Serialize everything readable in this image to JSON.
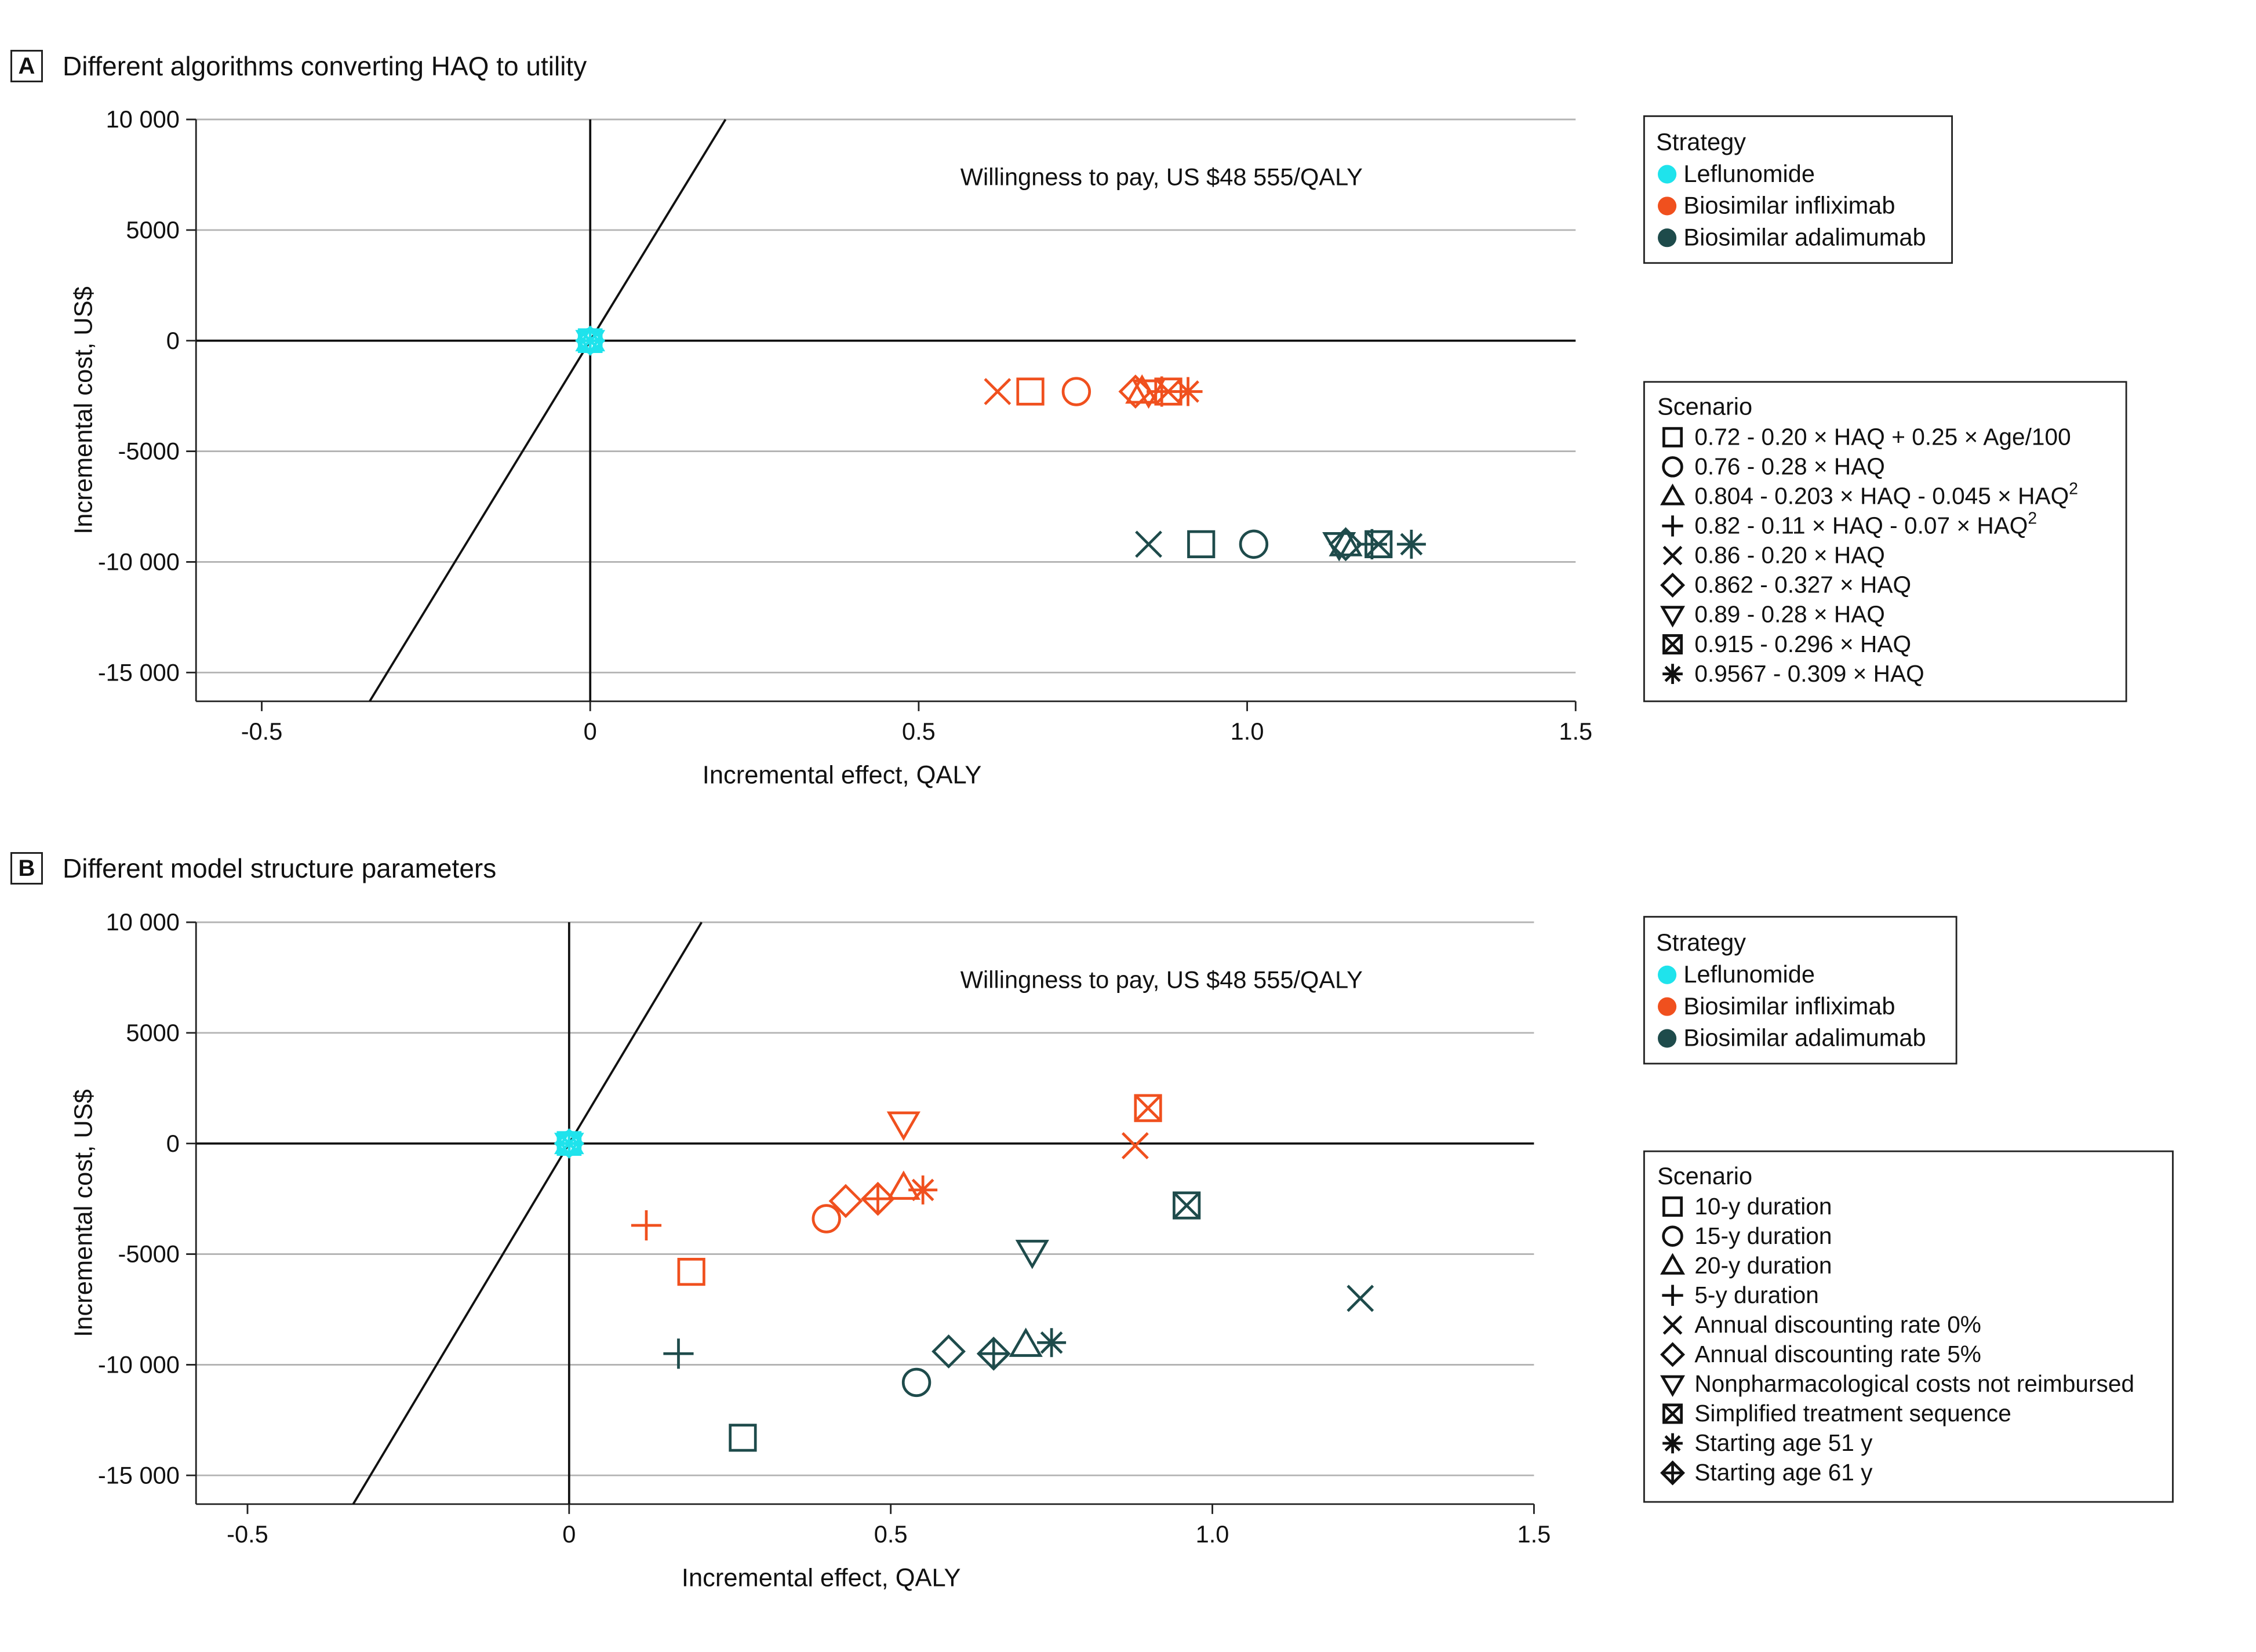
{
  "panel_a": {
    "letter": "A",
    "title": "Different algorithms converting HAQ to utility",
    "wtp_label": "Willingness to pay, US $48 555/QALY",
    "strategy_legend": {
      "title": "Strategy",
      "items": [
        {
          "label": "Leflunomide",
          "color": "#1fe3ec"
        },
        {
          "label": "Biosimilar infliximab",
          "color": "#f0501e"
        },
        {
          "label": "Biosimilar adalimumab",
          "color": "#1e4b4b"
        }
      ]
    },
    "scenario_legend": {
      "title": "Scenario",
      "items": [
        {
          "symbol": "square",
          "text": "0.72 - 0.20 × HAQ + 0.25 × Age/100",
          "sup": ""
        },
        {
          "symbol": "circle",
          "text": "0.76 - 0.28 × HAQ",
          "sup": ""
        },
        {
          "symbol": "triangle-up",
          "text": "0.804 - 0.203 × HAQ - 0.045 × HAQ",
          "sup": "2"
        },
        {
          "symbol": "plus",
          "text": "0.82 - 0.11 × HAQ - 0.07 × HAQ",
          "sup": "2"
        },
        {
          "symbol": "x",
          "text": "0.86 - 0.20 × HAQ",
          "sup": ""
        },
        {
          "symbol": "diamond",
          "text": "0.862 - 0.327 × HAQ",
          "sup": ""
        },
        {
          "symbol": "triangle-down",
          "text": "0.89 - 0.28 × HAQ",
          "sup": ""
        },
        {
          "symbol": "square-x",
          "text": "0.915 - 0.296 × HAQ",
          "sup": ""
        },
        {
          "symbol": "asterisk",
          "text": "0.9567 - 0.309 × HAQ",
          "sup": ""
        }
      ]
    }
  },
  "panel_b": {
    "letter": "B",
    "title": "Different model structure parameters",
    "wtp_label": "Willingness to pay, US $48 555/QALY",
    "strategy_legend": {
      "title": "Strategy",
      "items": [
        {
          "label": "Leflunomide",
          "color": "#1fe3ec"
        },
        {
          "label": "Biosimilar infliximab",
          "color": "#f0501e"
        },
        {
          "label": "Biosimilar adalimumab",
          "color": "#1e4b4b"
        }
      ]
    },
    "scenario_legend": {
      "title": "Scenario",
      "items": [
        {
          "symbol": "square",
          "text": "10-y duration",
          "sup": ""
        },
        {
          "symbol": "circle",
          "text": "15-y duration",
          "sup": ""
        },
        {
          "symbol": "triangle-up",
          "text": "20-y duration",
          "sup": ""
        },
        {
          "symbol": "plus",
          "text": "5-y duration",
          "sup": ""
        },
        {
          "symbol": "x",
          "text": "Annual discounting rate 0%",
          "sup": ""
        },
        {
          "symbol": "diamond",
          "text": "Annual discounting rate 5%",
          "sup": ""
        },
        {
          "symbol": "triangle-down",
          "text": "Nonpharmacological costs not reimbursed",
          "sup": ""
        },
        {
          "symbol": "square-x",
          "text": "Simplified treatment sequence",
          "sup": ""
        },
        {
          "symbol": "asterisk",
          "text": "Starting age 51 y",
          "sup": ""
        },
        {
          "symbol": "plus-diamond",
          "text": "Starting age 61 y",
          "sup": ""
        }
      ]
    }
  },
  "chart_data": [
    {
      "type": "scatter",
      "title": "Different algorithms converting HAQ to utility",
      "xlabel": "Incremental effect, QALY",
      "ylabel": "Incremental cost, US$",
      "xlim": [
        -0.6,
        1.5
      ],
      "ylim": [
        -16300,
        10000
      ],
      "xticks": [
        -0.5,
        0,
        0.5,
        1.0,
        1.5
      ],
      "xtick_labels": [
        "-0.5",
        "0",
        "0.5",
        "1.0",
        "1.5"
      ],
      "yticks": [
        10000,
        5000,
        0,
        -5000,
        -10000,
        -15000
      ],
      "ytick_labels": [
        "10 000",
        "5000",
        "0",
        "-5000",
        "-10 000",
        "-15 000"
      ],
      "wtp_per_qaly": 48555,
      "series": [
        {
          "name": "Leflunomide",
          "color": "#1fe3ec",
          "points": [
            {
              "scenario": "square",
              "x": 0,
              "y": 0
            },
            {
              "scenario": "circle",
              "x": 0,
              "y": 0
            },
            {
              "scenario": "triangle-up",
              "x": 0,
              "y": 0
            },
            {
              "scenario": "plus",
              "x": 0,
              "y": 0
            },
            {
              "scenario": "x",
              "x": 0,
              "y": 0
            },
            {
              "scenario": "diamond",
              "x": 0,
              "y": 0
            },
            {
              "scenario": "triangle-down",
              "x": 0,
              "y": 0
            },
            {
              "scenario": "square-x",
              "x": 0,
              "y": 0
            },
            {
              "scenario": "asterisk",
              "x": 0,
              "y": 0
            }
          ]
        },
        {
          "name": "Biosimilar infliximab",
          "color": "#f0501e",
          "points": [
            {
              "scenario": "square",
              "x": 0.67,
              "y": -2300
            },
            {
              "scenario": "circle",
              "x": 0.74,
              "y": -2300
            },
            {
              "scenario": "triangle-up",
              "x": 0.84,
              "y": -2300
            },
            {
              "scenario": "plus",
              "x": 0.87,
              "y": -2300
            },
            {
              "scenario": "x",
              "x": 0.62,
              "y": -2300
            },
            {
              "scenario": "diamond",
              "x": 0.83,
              "y": -2300
            },
            {
              "scenario": "triangle-down",
              "x": 0.85,
              "y": -2300
            },
            {
              "scenario": "square-x",
              "x": 0.88,
              "y": -2300
            },
            {
              "scenario": "asterisk",
              "x": 0.91,
              "y": -2300
            }
          ]
        },
        {
          "name": "Biosimilar adalimumab",
          "color": "#1e4b4b",
          "points": [
            {
              "scenario": "square",
              "x": 0.93,
              "y": -9200
            },
            {
              "scenario": "circle",
              "x": 1.01,
              "y": -9200
            },
            {
              "scenario": "triangle-up",
              "x": 1.15,
              "y": -9200
            },
            {
              "scenario": "plus",
              "x": 1.19,
              "y": -9200
            },
            {
              "scenario": "x",
              "x": 0.85,
              "y": -9200
            },
            {
              "scenario": "diamond",
              "x": 1.15,
              "y": -9200
            },
            {
              "scenario": "triangle-down",
              "x": 1.14,
              "y": -9200
            },
            {
              "scenario": "square-x",
              "x": 1.2,
              "y": -9200
            },
            {
              "scenario": "asterisk",
              "x": 1.25,
              "y": -9200
            }
          ]
        }
      ]
    },
    {
      "type": "scatter",
      "title": "Different model structure parameters",
      "xlabel": "Incremental effect, QALY",
      "ylabel": "Incremental cost, US$",
      "xlim": [
        -0.58,
        1.5
      ],
      "ylim": [
        -16300,
        10000
      ],
      "xticks": [
        -0.5,
        0,
        0.5,
        1.0,
        1.5
      ],
      "xtick_labels": [
        "-0.5",
        "0",
        "0.5",
        "1.0",
        "1.5"
      ],
      "yticks": [
        10000,
        5000,
        0,
        -5000,
        -10000,
        -15000
      ],
      "ytick_labels": [
        "10 000",
        "5000",
        "0",
        "-5000",
        "-10 000",
        "-15 000"
      ],
      "wtp_per_qaly": 48555,
      "series": [
        {
          "name": "Leflunomide",
          "color": "#1fe3ec",
          "points": [
            {
              "scenario": "square",
              "x": 0,
              "y": 0
            },
            {
              "scenario": "circle",
              "x": 0,
              "y": 0
            },
            {
              "scenario": "triangle-up",
              "x": 0,
              "y": 0
            },
            {
              "scenario": "plus",
              "x": 0,
              "y": 0
            },
            {
              "scenario": "x",
              "x": 0,
              "y": 0
            },
            {
              "scenario": "diamond",
              "x": 0,
              "y": 0
            },
            {
              "scenario": "triangle-down",
              "x": 0,
              "y": 0
            },
            {
              "scenario": "square-x",
              "x": 0,
              "y": 0
            },
            {
              "scenario": "asterisk",
              "x": 0,
              "y": 0
            },
            {
              "scenario": "plus-diamond",
              "x": 0,
              "y": 0
            }
          ]
        },
        {
          "name": "Biosimilar infliximab",
          "color": "#f0501e",
          "points": [
            {
              "scenario": "square",
              "x": 0.19,
              "y": -5800
            },
            {
              "scenario": "circle",
              "x": 0.4,
              "y": -3400
            },
            {
              "scenario": "triangle-up",
              "x": 0.52,
              "y": -2000
            },
            {
              "scenario": "plus",
              "x": 0.12,
              "y": -3700
            },
            {
              "scenario": "x",
              "x": 0.88,
              "y": -100
            },
            {
              "scenario": "diamond",
              "x": 0.43,
              "y": -2600
            },
            {
              "scenario": "triangle-down",
              "x": 0.52,
              "y": 900
            },
            {
              "scenario": "square-x",
              "x": 0.9,
              "y": 1600
            },
            {
              "scenario": "asterisk",
              "x": 0.55,
              "y": -2100
            },
            {
              "scenario": "plus-diamond",
              "x": 0.48,
              "y": -2500
            }
          ]
        },
        {
          "name": "Biosimilar adalimumab",
          "color": "#1e4b4b",
          "points": [
            {
              "scenario": "square",
              "x": 0.27,
              "y": -13300
            },
            {
              "scenario": "circle",
              "x": 0.54,
              "y": -10800
            },
            {
              "scenario": "triangle-up",
              "x": 0.71,
              "y": -9100
            },
            {
              "scenario": "plus",
              "x": 0.17,
              "y": -9500
            },
            {
              "scenario": "x",
              "x": 1.23,
              "y": -7000
            },
            {
              "scenario": "diamond",
              "x": 0.59,
              "y": -9400
            },
            {
              "scenario": "triangle-down",
              "x": 0.72,
              "y": -4900
            },
            {
              "scenario": "square-x",
              "x": 0.96,
              "y": -2800
            },
            {
              "scenario": "asterisk",
              "x": 0.75,
              "y": -9000
            },
            {
              "scenario": "plus-diamond",
              "x": 0.66,
              "y": -9500
            }
          ]
        }
      ]
    }
  ]
}
